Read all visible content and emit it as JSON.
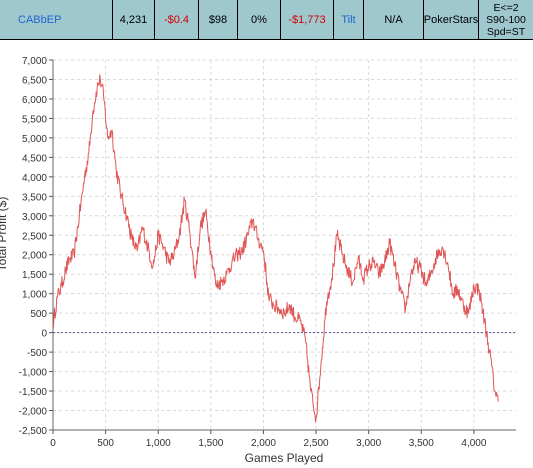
{
  "stats_row": {
    "player": "CABbEP",
    "hands": "4,231",
    "avg_profit": "-$0.4",
    "avg_stake": "$98",
    "roi": "0%",
    "total_profit": "-$1,773",
    "tilt": "Tilt",
    "na": "N/A",
    "site": "PokerStars",
    "filter_lines": [
      "E<=2",
      "S90-100",
      "Spd=ST"
    ]
  },
  "colors": {
    "header_bg": "#9ec7ce",
    "line": "#e05555",
    "zero_line": "#5555aa",
    "grid": "#d8d8d8",
    "negative_text": "#d40000",
    "link_text": "#2266cc"
  },
  "chart_data": {
    "type": "line",
    "xlabel": "Games Played",
    "ylabel": "Total Profit ($)",
    "xlim": [
      0,
      4231
    ],
    "ylim": [
      -2500,
      7000
    ],
    "x_ticks": [
      0,
      500,
      1000,
      1500,
      2000,
      2500,
      3000,
      3500,
      4000
    ],
    "x_tick_labels": [
      "0",
      "500",
      "1,000",
      "1,500",
      "2,000",
      "2,500",
      "3,000",
      "3,500",
      "4,000"
    ],
    "y_ticks": [
      -2500,
      -2000,
      -1500,
      -1000,
      -500,
      0,
      500,
      1000,
      1500,
      2000,
      2500,
      3000,
      3500,
      4000,
      4500,
      5000,
      5500,
      6000,
      6500,
      7000
    ],
    "y_tick_labels": [
      "-2,500",
      "-2,000",
      "-1,500",
      "-1,000",
      "-500",
      "0",
      "500",
      "1,000",
      "1,500",
      "2,000",
      "2,500",
      "3,000",
      "3,500",
      "4,000",
      "4,500",
      "5,000",
      "5,500",
      "6,000",
      "6,500",
      "7,000"
    ],
    "grid": true,
    "zero_line": true,
    "series": [
      {
        "x": [
          0,
          40,
          80,
          120,
          160,
          200,
          250,
          300,
          340,
          380,
          420,
          450,
          480,
          520,
          560,
          600,
          650,
          700,
          750,
          800,
          850,
          900,
          950,
          1000,
          1050,
          1100,
          1150,
          1200,
          1250,
          1300,
          1350,
          1400,
          1450,
          1500,
          1550,
          1600,
          1650,
          1700,
          1750,
          1800,
          1850,
          1900,
          1950,
          2000,
          2050,
          2100,
          2150,
          2200,
          2250,
          2300,
          2350,
          2400,
          2450,
          2500,
          2550,
          2600,
          2650,
          2700,
          2750,
          2800,
          2850,
          2900,
          2950,
          3000,
          3050,
          3100,
          3150,
          3200,
          3250,
          3300,
          3350,
          3400,
          3450,
          3500,
          3550,
          3600,
          3650,
          3700,
          3750,
          3800,
          3850,
          3900,
          3950,
          4000,
          4050,
          4100,
          4150,
          4200,
          4231
        ],
        "y": [
          200,
          900,
          1200,
          1600,
          1900,
          2000,
          3000,
          4000,
          4600,
          5700,
          6300,
          6500,
          6100,
          5000,
          5200,
          4200,
          3500,
          3000,
          2400,
          2100,
          2700,
          2200,
          1700,
          2500,
          2200,
          1800,
          2000,
          2500,
          3400,
          2600,
          1400,
          2700,
          3100,
          2100,
          1200,
          1300,
          1500,
          1800,
          2000,
          2100,
          2500,
          2900,
          2400,
          2100,
          900,
          700,
          600,
          500,
          700,
          400,
          300,
          -200,
          -1500,
          -2200,
          -700,
          800,
          1400,
          2500,
          2000,
          1600,
          1300,
          1900,
          1400,
          1700,
          1800,
          1500,
          1800,
          2300,
          1700,
          1100,
          600,
          1500,
          1800,
          1600,
          1200,
          1600,
          2000,
          2200,
          1800,
          1000,
          1100,
          700,
          500,
          1200,
          1100,
          300,
          -500,
          -1500,
          -1773
        ]
      }
    ]
  }
}
